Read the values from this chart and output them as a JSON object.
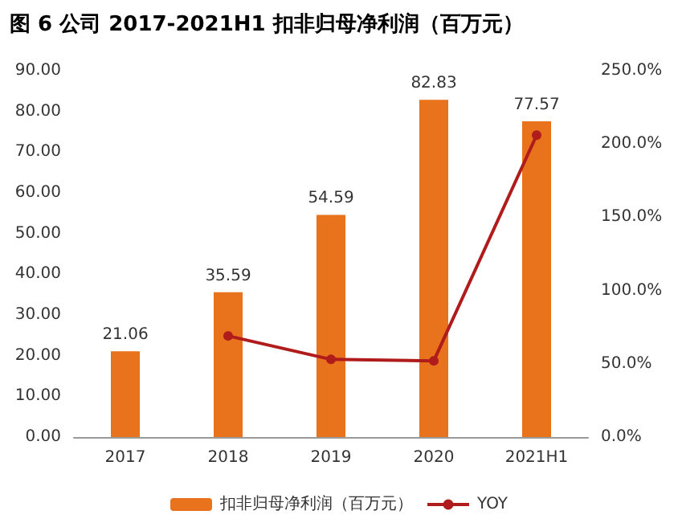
{
  "chart_data": {
    "type": "bar",
    "title": "图 6 公司 2017-2021H1 扣非归母净利润（百万元）",
    "categories": [
      "2017",
      "2018",
      "2019",
      "2020",
      "2021H1"
    ],
    "series": [
      {
        "name": "扣非归母净利润（百万元）",
        "color": "#e8731c",
        "values": [
          21.06,
          35.59,
          54.59,
          82.83,
          77.57
        ],
        "value_labels": [
          "21.06",
          "35.59",
          "54.59",
          "82.83",
          "77.57"
        ]
      },
      {
        "name": "YOY",
        "type": "line",
        "axis": "y2",
        "color": "#b01c1c",
        "values": [
          null,
          69,
          53,
          52,
          206
        ]
      }
    ],
    "ylim": [
      0,
      90
    ],
    "yticks": [
      {
        "value": 0,
        "label": "0.00"
      },
      {
        "value": 10,
        "label": "10.00"
      },
      {
        "value": 20,
        "label": "20.00"
      },
      {
        "value": 30,
        "label": "30.00"
      },
      {
        "value": 40,
        "label": "40.00"
      },
      {
        "value": 50,
        "label": "50.00"
      },
      {
        "value": 60,
        "label": "60.00"
      },
      {
        "value": 70,
        "label": "70.00"
      },
      {
        "value": 80,
        "label": "80.00"
      },
      {
        "value": 90,
        "label": "90.00"
      }
    ],
    "y2lim": [
      0,
      250
    ],
    "y2ticks": [
      {
        "value": 0,
        "label": "0.0%"
      },
      {
        "value": 50,
        "label": "50.0%"
      },
      {
        "value": 100,
        "label": "100.0%"
      },
      {
        "value": 150,
        "label": "150.0%"
      },
      {
        "value": 200,
        "label": "200.0%"
      },
      {
        "value": 250,
        "label": "250.0%"
      }
    ],
    "legend": "bottom",
    "marker": "circle",
    "grid": false
  }
}
